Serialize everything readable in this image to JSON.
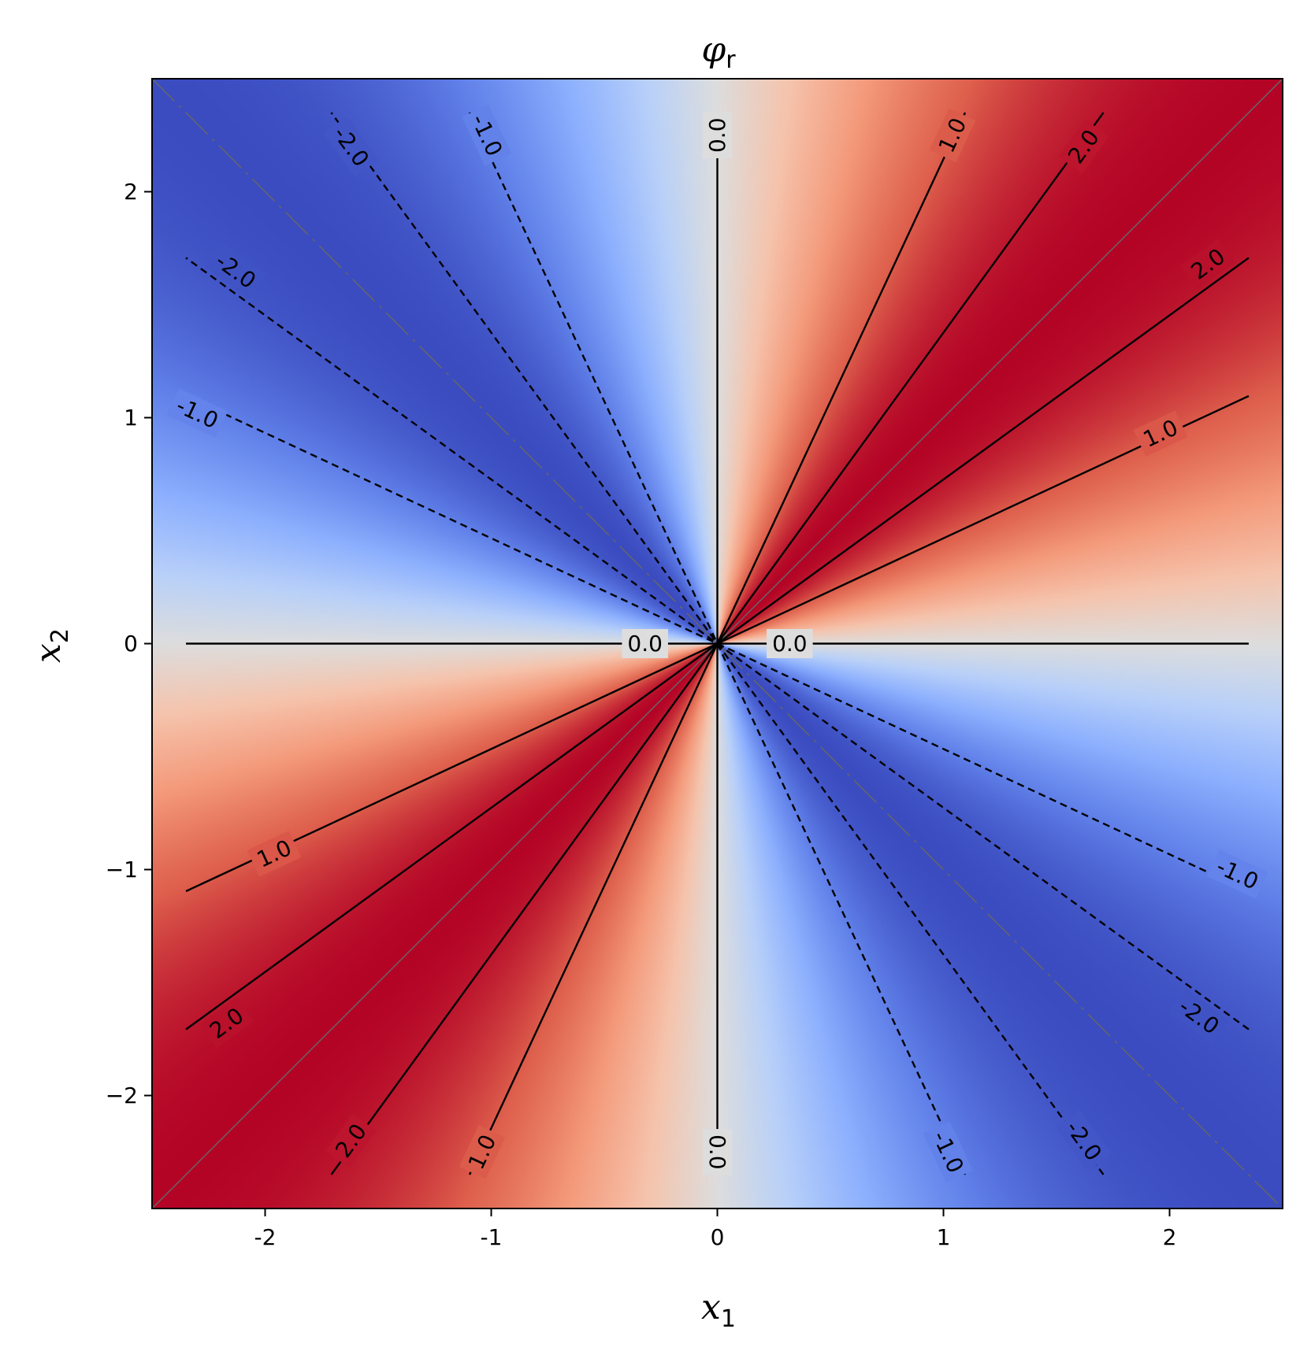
{
  "chart_data": {
    "type": "heatmap",
    "title": "φ",
    "title_subscript": "r",
    "xlabel": "x",
    "xlabel_subscript": "1",
    "ylabel": "x",
    "ylabel_subscript": "2",
    "xlim": [
      -2.5,
      2.5
    ],
    "ylim": [
      -2.5,
      2.5
    ],
    "colormap": "coolwarm",
    "color_range": [
      -2.2,
      2.2
    ],
    "x_ticks": [
      {
        "value": -2,
        "label": "-2"
      },
      {
        "value": -1,
        "label": "-1"
      },
      {
        "value": 0,
        "label": "0"
      },
      {
        "value": 1,
        "label": "1"
      },
      {
        "value": 2,
        "label": "2"
      }
    ],
    "y_ticks": [
      {
        "value": -2,
        "label": "−2"
      },
      {
        "value": -1,
        "label": "−1"
      },
      {
        "value": 0,
        "label": "0"
      },
      {
        "value": 1,
        "label": "1"
      },
      {
        "value": 2,
        "label": "2"
      }
    ],
    "grid": false,
    "legend": "none",
    "contours": [
      {
        "level": 0.0,
        "angle_deg": 0,
        "style": "solid"
      },
      {
        "level": 0.0,
        "angle_deg": 90,
        "style": "solid"
      },
      {
        "level": 1.0,
        "angle_deg": 25,
        "style": "solid"
      },
      {
        "level": 1.0,
        "angle_deg": 65,
        "style": "solid"
      },
      {
        "level": 2.0,
        "angle_deg": 36,
        "style": "solid"
      },
      {
        "level": 2.0,
        "angle_deg": 54,
        "style": "solid"
      },
      {
        "level": -1.0,
        "angle_deg": 115,
        "style": "dashed"
      },
      {
        "level": -1.0,
        "angle_deg": 155,
        "style": "dashed"
      },
      {
        "level": -2.0,
        "angle_deg": 126,
        "style": "dashed"
      },
      {
        "level": -2.0,
        "angle_deg": 144,
        "style": "dashed"
      }
    ],
    "contour_labels": [
      {
        "text": "0.0",
        "x": 0.0,
        "y": 2.25,
        "rot": -90
      },
      {
        "text": "0.0",
        "x": 0.0,
        "y": -2.25,
        "rot": 90
      },
      {
        "text": "0.0",
        "x": -0.32,
        "y": 0.0,
        "rot": 0
      },
      {
        "text": "0.0",
        "x": 0.32,
        "y": 0.0,
        "rot": 0
      },
      {
        "text": "1.0",
        "x": 1.04,
        "y": 2.25,
        "rot": -65
      },
      {
        "text": "1.0",
        "x": -1.04,
        "y": -2.25,
        "rot": -65
      },
      {
        "text": "1.0",
        "x": 1.96,
        "y": 0.93,
        "rot": -25
      },
      {
        "text": "1.0",
        "x": -1.96,
        "y": -0.93,
        "rot": -25
      },
      {
        "text": "2.0",
        "x": 1.62,
        "y": 2.2,
        "rot": -54
      },
      {
        "text": "2.0",
        "x": -1.62,
        "y": -2.2,
        "rot": -54
      },
      {
        "text": "2.0",
        "x": 2.17,
        "y": 1.68,
        "rot": -36
      },
      {
        "text": "2.0",
        "x": -2.17,
        "y": -1.68,
        "rot": -36
      },
      {
        "text": "-1.0",
        "x": -1.02,
        "y": 2.25,
        "rot": 65
      },
      {
        "text": "-1.0",
        "x": 1.02,
        "y": -2.25,
        "rot": 65
      },
      {
        "text": "-1.0",
        "x": -2.3,
        "y": 1.02,
        "rot": 25
      },
      {
        "text": "-1.0",
        "x": 2.3,
        "y": -1.02,
        "rot": 25
      },
      {
        "text": "-2.0",
        "x": -1.62,
        "y": 2.2,
        "rot": 54
      },
      {
        "text": "-2.0",
        "x": 1.62,
        "y": -2.2,
        "rot": 54
      },
      {
        "text": "-2.0",
        "x": -2.13,
        "y": 1.65,
        "rot": 36
      },
      {
        "text": "-2.0",
        "x": 2.13,
        "y": -1.65,
        "rot": 36
      }
    ]
  }
}
